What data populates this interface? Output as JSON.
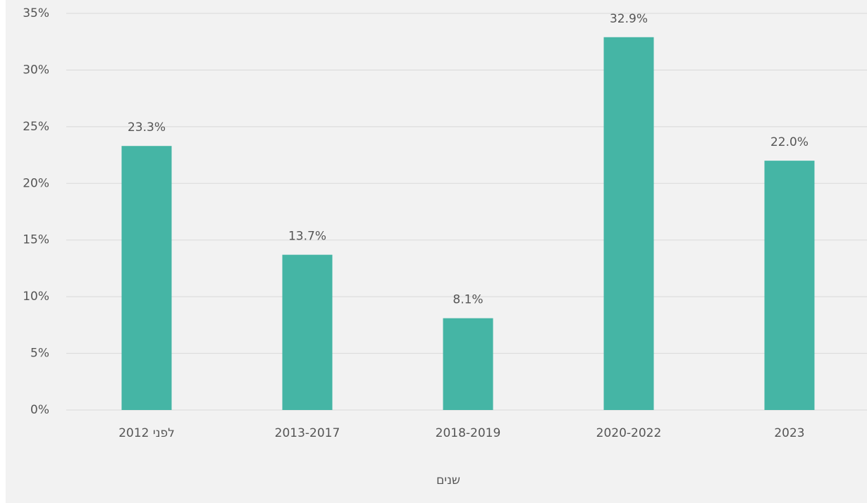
{
  "chart_data": {
    "type": "bar",
    "categories": [
      "לפני 2012",
      "2013-2017",
      "2018-2019",
      "2020-2022",
      "2023"
    ],
    "values": [
      23.3,
      13.7,
      8.1,
      32.9,
      22.0
    ],
    "value_labels": [
      "23.3%",
      "13.7%",
      "8.1%",
      "32.9%",
      "22.0%"
    ],
    "color": "#45b5a5",
    "x_label": "שנים",
    "ylim": [
      0,
      35
    ],
    "yticks": [
      {
        "value": 0,
        "label": "0%"
      },
      {
        "value": 5,
        "label": "5%"
      },
      {
        "value": 10,
        "label": "10%"
      },
      {
        "value": 15,
        "label": "15%"
      },
      {
        "value": 20,
        "label": "20%"
      },
      {
        "value": 25,
        "label": "25%"
      },
      {
        "value": 30,
        "label": "30%"
      },
      {
        "value": 35,
        "label": "35%"
      }
    ],
    "grid": true
  }
}
